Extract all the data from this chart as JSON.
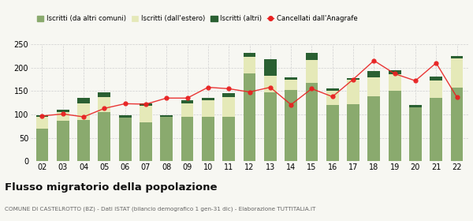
{
  "years": [
    "02",
    "03",
    "04",
    "05",
    "06",
    "07",
    "08",
    "09",
    "10",
    "11",
    "12",
    "13",
    "14",
    "15",
    "16",
    "17",
    "18",
    "19",
    "20",
    "21",
    "22"
  ],
  "iscritti_comuni": [
    70,
    87,
    88,
    105,
    93,
    83,
    95,
    95,
    95,
    95,
    188,
    148,
    152,
    168,
    120,
    122,
    138,
    151,
    115,
    135,
    158
  ],
  "iscritti_estero": [
    25,
    18,
    35,
    32,
    0,
    35,
    0,
    28,
    35,
    42,
    35,
    35,
    22,
    48,
    30,
    52,
    42,
    35,
    0,
    38,
    62
  ],
  "iscritti_altri": [
    3,
    5,
    12,
    10,
    5,
    5,
    4,
    8,
    5,
    8,
    8,
    35,
    5,
    15,
    5,
    3,
    12,
    8,
    5,
    8,
    5
  ],
  "cancellati": [
    97,
    101,
    95,
    113,
    123,
    122,
    135,
    135,
    158,
    155,
    148,
    158,
    121,
    155,
    138,
    175,
    215,
    187,
    172,
    210,
    137
  ],
  "color_comuni": "#8aaa6e",
  "color_estero": "#e5e9b8",
  "color_altri": "#2a6032",
  "color_cancellati": "#e82020",
  "legend_comuni": "Iscritti (da altri comuni)",
  "legend_estero": "Iscritti (dall'estero)",
  "legend_altri": "Iscritti (altri)",
  "legend_cancellati": "Cancellati dall'Anagrafe",
  "title": "Flusso migratorio della popolazione",
  "subtitle": "COMUNE DI CASTELROTTO (BZ) - Dati ISTAT (bilancio demografico 1 gen-31 dic) - Elaborazione TUTTITALIA.IT",
  "ylim": [
    0,
    250
  ],
  "yticks": [
    0,
    50,
    100,
    150,
    200,
    250
  ],
  "bg_color": "#f7f7f2",
  "grid_color": "#d0d0d0"
}
